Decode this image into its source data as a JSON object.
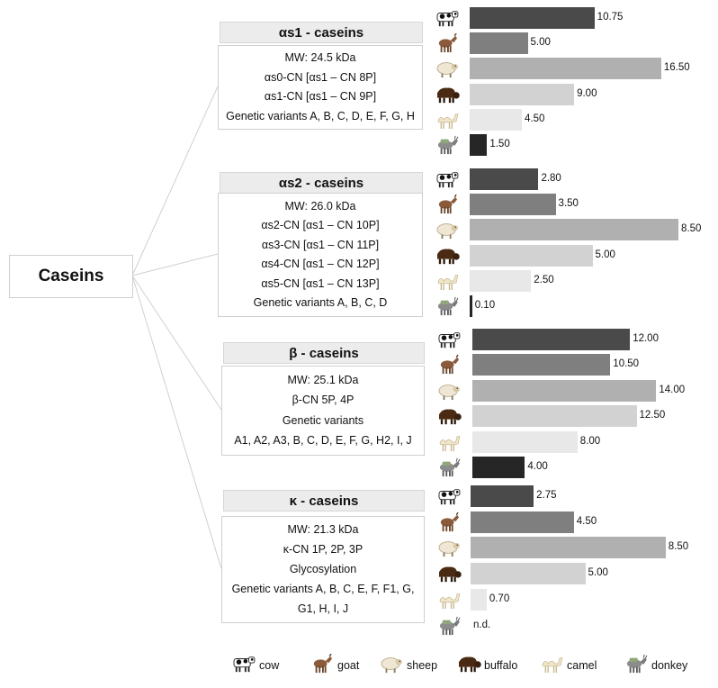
{
  "root_label": "Caseins",
  "legend": [
    {
      "key": "cow",
      "label": "cow",
      "icon": "cow-icon"
    },
    {
      "key": "goat",
      "label": "goat",
      "icon": "goat-icon"
    },
    {
      "key": "sheep",
      "label": "sheep",
      "icon": "sheep-icon"
    },
    {
      "key": "buffalo",
      "label": "buffalo",
      "icon": "buffalo-icon"
    },
    {
      "key": "camel",
      "label": "camel",
      "icon": "camel-icon"
    },
    {
      "key": "donkey",
      "label": "donkey",
      "icon": "donkey-icon"
    }
  ],
  "colors": {
    "cow": "#4a4a4a",
    "goat": "#7f7f7f",
    "sheep": "#b0b0b0",
    "buffalo": "#d2d2d2",
    "camel": "#e8e8e8",
    "donkey": "#262626"
  },
  "chart_data": [
    {
      "type": "bar",
      "title": "αs1 - caseins",
      "info": [
        "MW: 24.5 kDa",
        "αs0-CN [αs1 – CN 8P]",
        "αs1-CN [αs1 – CN 9P]",
        "Genetic variants A, B, C, D, E, F, G, H"
      ],
      "categories": [
        "cow",
        "goat",
        "sheep",
        "buffalo",
        "camel",
        "donkey"
      ],
      "values": [
        10.75,
        5.0,
        16.5,
        9.0,
        4.5,
        1.5
      ],
      "value_labels": [
        "10.75",
        "5.00",
        "16.50",
        "9.00",
        "4.50",
        "1.50"
      ]
    },
    {
      "type": "bar",
      "title": "αs2 - caseins",
      "info": [
        "MW: 26.0 kDa",
        "αs2-CN [αs1 – CN 10P]",
        "αs3-CN [αs1 – CN 11P]",
        "αs4-CN [αs1 – CN 12P]",
        "αs5-CN [αs1 – CN 13P]",
        "Genetic variants A, B, C, D"
      ],
      "categories": [
        "cow",
        "goat",
        "sheep",
        "buffalo",
        "camel",
        "donkey"
      ],
      "values": [
        2.8,
        3.5,
        8.5,
        5.0,
        2.5,
        0.1
      ],
      "value_labels": [
        "2.80",
        "3.50",
        "8.50",
        "5.00",
        "2.50",
        "0.10"
      ]
    },
    {
      "type": "bar",
      "title": "β - caseins",
      "info": [
        "MW: 25.1 kDa",
        "β-CN 5P, 4P",
        "Genetic variants",
        "A1, A2, A3, B, C, D, E, F, G, H2, I, J"
      ],
      "categories": [
        "cow",
        "goat",
        "sheep",
        "buffalo",
        "camel",
        "donkey"
      ],
      "values": [
        12.0,
        10.5,
        14.0,
        12.5,
        8.0,
        4.0
      ],
      "value_labels": [
        "12.00",
        "10.50",
        "14.00",
        "12.50",
        "8.00",
        "4.00"
      ]
    },
    {
      "type": "bar",
      "title": "κ - caseins",
      "info": [
        "MW: 21.3 kDa",
        "κ-CN 1P, 2P, 3P",
        "Glycosylation",
        "Genetic variants A, B, C, E, F, F1, G,",
        "G1, H, I, J"
      ],
      "categories": [
        "cow",
        "goat",
        "sheep",
        "buffalo",
        "camel",
        "donkey"
      ],
      "values": [
        2.75,
        4.5,
        8.5,
        5.0,
        0.7,
        null
      ],
      "value_labels": [
        "2.75",
        "4.50",
        "8.50",
        "5.00",
        "0.70",
        "n.d."
      ]
    }
  ]
}
